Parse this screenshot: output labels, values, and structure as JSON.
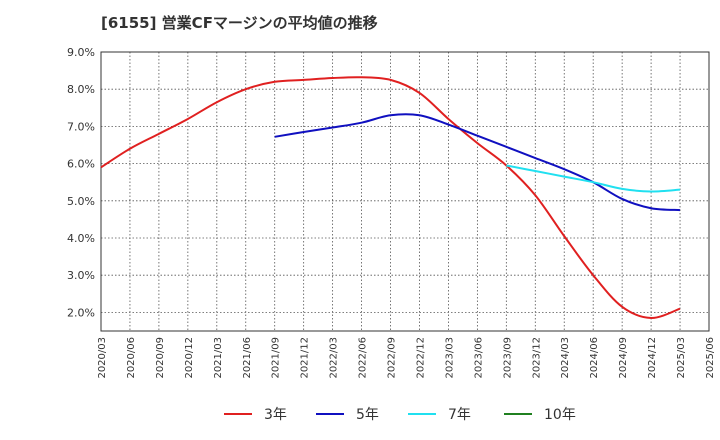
{
  "chart_data": {
    "type": "line",
    "title": "[6155]  営業CFマージンの平均値の推移",
    "xlabel": "",
    "ylabel": "",
    "x_ticks": [
      "2020/03",
      "2020/06",
      "2020/09",
      "2020/12",
      "2021/03",
      "2021/06",
      "2021/09",
      "2021/12",
      "2022/03",
      "2022/06",
      "2022/09",
      "2022/12",
      "2023/03",
      "2023/06",
      "2023/09",
      "2023/12",
      "2024/03",
      "2024/06",
      "2024/09",
      "2024/12",
      "2025/03",
      "2025/06"
    ],
    "y_ticks": [
      "2.0%",
      "3.0%",
      "4.0%",
      "5.0%",
      "6.0%",
      "7.0%",
      "8.0%",
      "9.0%"
    ],
    "ylim": [
      1.5,
      9.0
    ],
    "unit": "%",
    "grid": true,
    "legend_position": "bottom",
    "series": [
      {
        "name": "3年",
        "color": "#e02020",
        "x": [
          "2020/03",
          "2020/06",
          "2020/09",
          "2020/12",
          "2021/03",
          "2021/06",
          "2021/09",
          "2021/12",
          "2022/03",
          "2022/06",
          "2022/09",
          "2022/12",
          "2023/03",
          "2023/06",
          "2023/09",
          "2023/12",
          "2024/03",
          "2024/06",
          "2024/09",
          "2024/12",
          "2025/03"
        ],
        "values": [
          5.9,
          6.4,
          6.8,
          7.2,
          7.65,
          8.0,
          8.2,
          8.25,
          8.3,
          8.32,
          8.25,
          7.9,
          7.2,
          6.55,
          5.95,
          5.15,
          4.05,
          3.0,
          2.15,
          1.85,
          2.1
        ]
      },
      {
        "name": "5年",
        "color": "#1010c0",
        "x": [
          "2021/09",
          "2021/12",
          "2022/03",
          "2022/06",
          "2022/09",
          "2022/12",
          "2023/03",
          "2023/06",
          "2023/09",
          "2023/12",
          "2024/03",
          "2024/06",
          "2024/09",
          "2024/12",
          "2025/03"
        ],
        "values": [
          6.72,
          6.85,
          6.97,
          7.1,
          7.3,
          7.3,
          7.05,
          6.75,
          6.45,
          6.15,
          5.85,
          5.5,
          5.05,
          4.8,
          4.75
        ]
      },
      {
        "name": "7年",
        "color": "#20e0f0",
        "x": [
          "2023/09",
          "2023/12",
          "2024/03",
          "2024/06",
          "2024/09",
          "2024/12",
          "2025/03"
        ],
        "values": [
          5.95,
          5.8,
          5.65,
          5.5,
          5.32,
          5.25,
          5.3
        ]
      },
      {
        "name": "10年",
        "color": "#208020",
        "x": [],
        "values": []
      }
    ]
  }
}
